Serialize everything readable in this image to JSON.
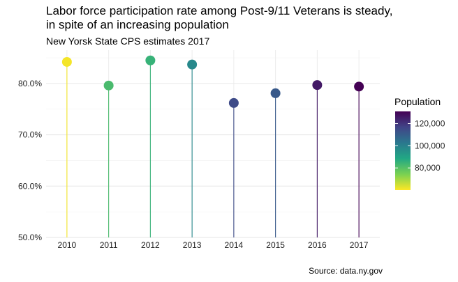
{
  "title": "Labor force participation rate among Post-9/11 Veterans is steady,\nin spite of an increasing population",
  "subtitle": "New Yorsk State CPS estimates 2017",
  "caption": "Source: data.ny.gov",
  "chart_data": {
    "type": "lollipop",
    "x": [
      "2010",
      "2011",
      "2012",
      "2013",
      "2014",
      "2015",
      "2016",
      "2017"
    ],
    "values": [
      84.2,
      79.6,
      84.5,
      83.7,
      76.2,
      78.1,
      79.7,
      79.4
    ],
    "population": [
      61000,
      82000,
      85000,
      98000,
      115000,
      111000,
      126000,
      131000
    ],
    "ylim": [
      50,
      86.5
    ],
    "yticks": [
      50,
      60,
      70,
      80
    ],
    "ytick_labels": [
      "50.0%",
      "60.0%",
      "70.0%",
      "80.0%"
    ],
    "grid": true,
    "legend": {
      "title": "Population",
      "position": "right",
      "range": [
        60000,
        131000
      ],
      "ticks": [
        80000,
        100000,
        120000
      ],
      "tick_labels": [
        "80,000",
        "100,000",
        "120,000"
      ],
      "colormap": "viridis"
    }
  }
}
